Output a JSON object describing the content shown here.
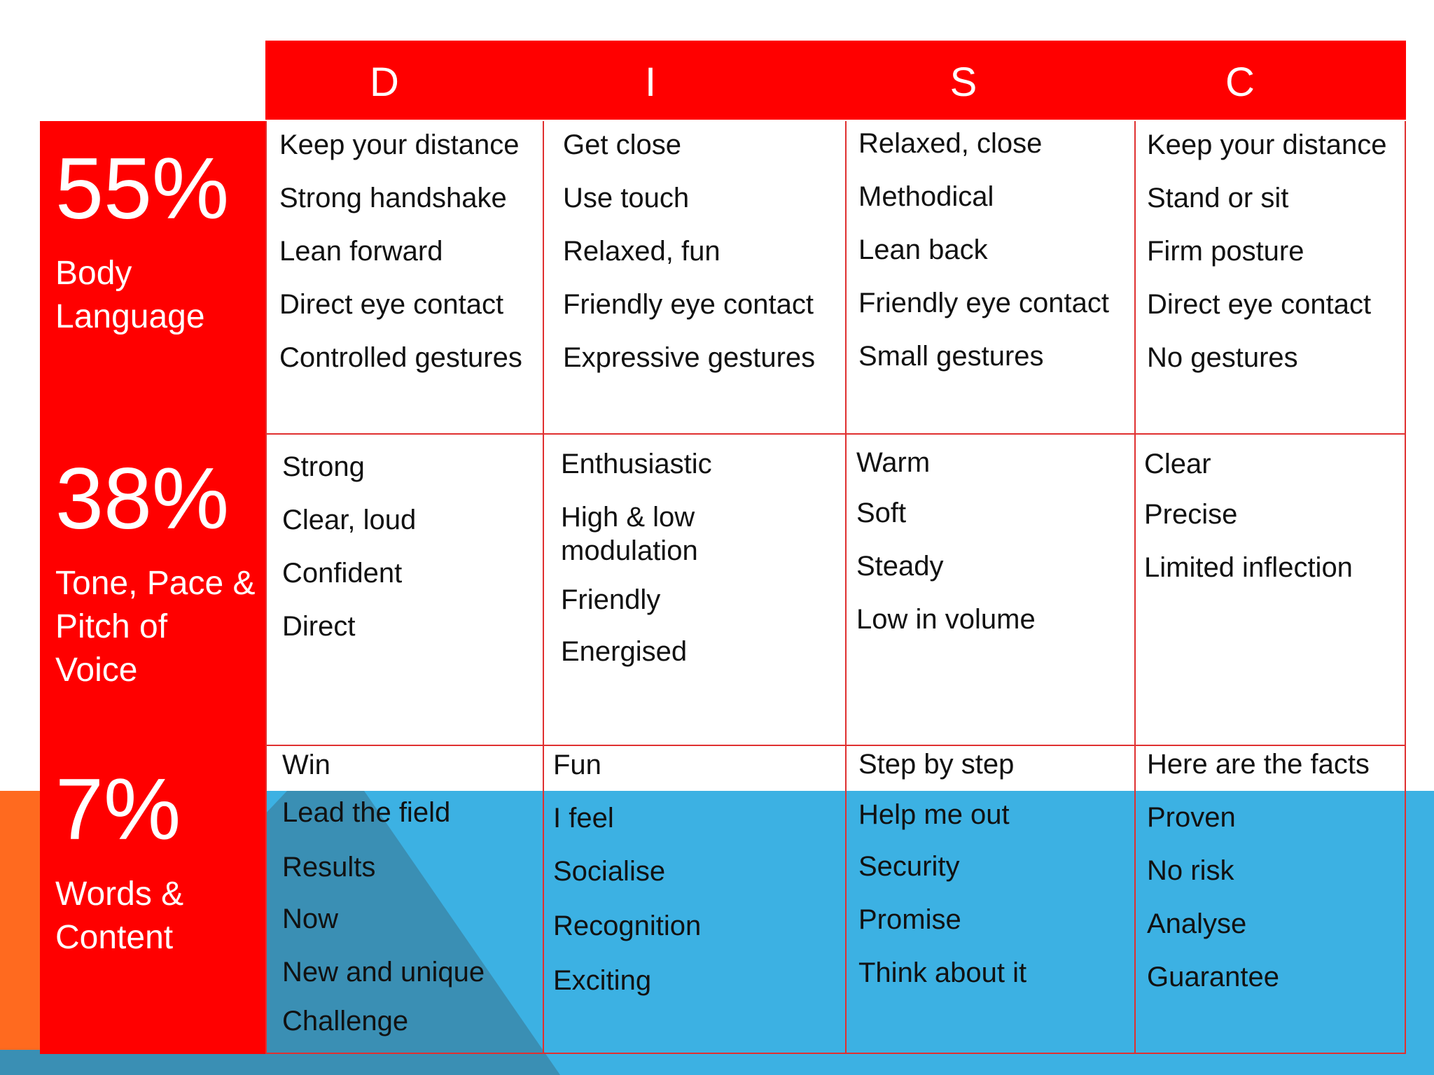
{
  "colors": {
    "accent_red": "#ff0000",
    "blue": "#3cb1e3",
    "orange": "#ff6a1f",
    "dark_blue": "#3a8fb4"
  },
  "columns": [
    "D",
    "I",
    "S",
    "C"
  ],
  "rows": [
    {
      "percent": "55%",
      "label": "Body Language"
    },
    {
      "percent": "38%",
      "label": "Tone, Pace & Pitch of Voice"
    },
    {
      "percent": "7%",
      "label": "Words & Content"
    }
  ],
  "cells": [
    [
      [
        "Keep your distance",
        "Strong handshake",
        "Lean forward",
        "Direct eye contact",
        "Controlled gestures"
      ],
      [
        "Get close",
        "Use touch",
        "Relaxed, fun",
        "Friendly eye contact",
        "Expressive gestures"
      ],
      [
        "Relaxed, close",
        "Methodical",
        "Lean back",
        "Friendly eye contact",
        "Small gestures"
      ],
      [
        "Keep your distance",
        "Stand or sit",
        "Firm posture",
        "Direct eye contact",
        "No gestures"
      ]
    ],
    [
      [
        "Strong",
        "Clear, loud",
        "Confident",
        "Direct"
      ],
      [
        "Enthusiastic",
        "High & low modulation",
        "Friendly",
        "Energised"
      ],
      [
        "Warm",
        "Soft",
        "Steady",
        "Low in volume"
      ],
      [
        "Clear",
        "Precise",
        "Limited inflection"
      ]
    ],
    [
      [
        "Win",
        "Lead the field",
        "Results",
        "Now",
        "New and unique",
        "Challenge"
      ],
      [
        "Fun",
        "I feel",
        "Socialise",
        "Recognition",
        "Exciting"
      ],
      [
        "Step by step",
        "Help me out",
        "Security",
        "Promise",
        "Think about it"
      ],
      [
        "Here are the facts",
        "Proven",
        "No risk",
        "Analyse",
        "Guarantee"
      ]
    ]
  ]
}
